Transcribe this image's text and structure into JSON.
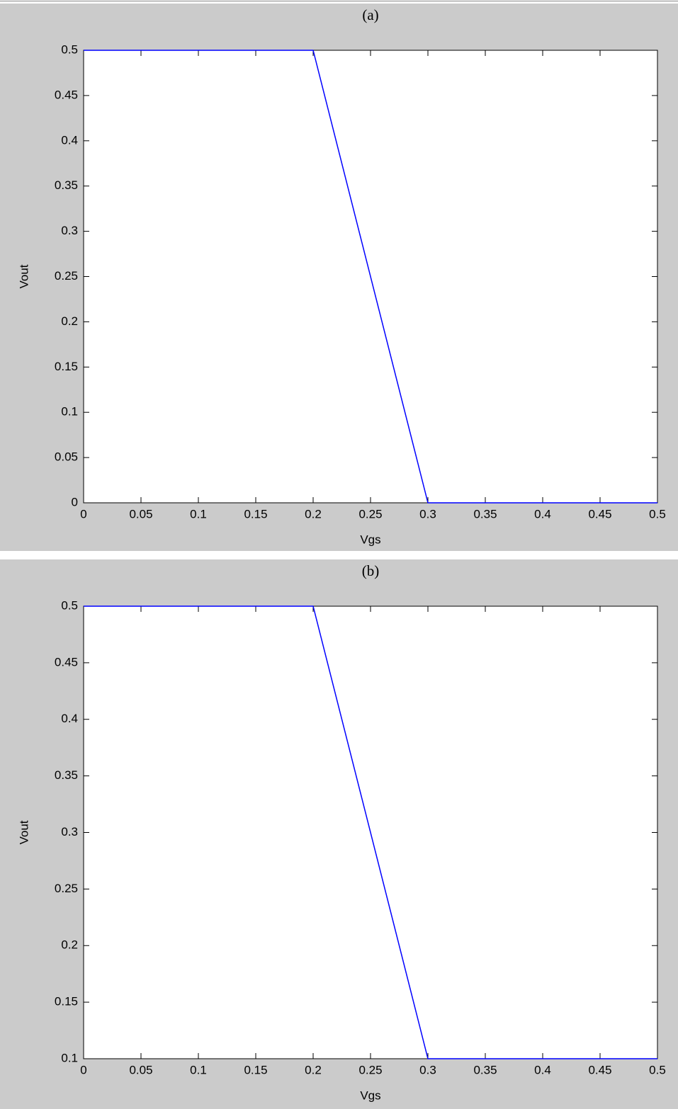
{
  "chart_data": [
    {
      "type": "line",
      "title": "(a)",
      "x_label": "Vgs",
      "y_label": "Vout",
      "x": [
        0,
        0.2,
        0.3,
        0.5
      ],
      "values": [
        0.5,
        0.5,
        0,
        0
      ],
      "color": "#0000ff",
      "xlim": [
        0,
        0.5
      ],
      "ylim": [
        0,
        0.5
      ],
      "xticks": [
        0,
        0.05,
        0.1,
        0.15,
        0.2,
        0.25,
        0.3,
        0.35,
        0.4,
        0.45,
        0.5
      ],
      "yticks": [
        0,
        0.05,
        0.1,
        0.15,
        0.2,
        0.25,
        0.3,
        0.35,
        0.4,
        0.45,
        0.5
      ]
    },
    {
      "type": "line",
      "title": "(b)",
      "x_label": "Vgs",
      "y_label": "Vout",
      "x": [
        0,
        0.2,
        0.3,
        0.5
      ],
      "values": [
        0.5,
        0.5,
        0.1,
        0.1
      ],
      "color": "#0000ff",
      "xlim": [
        0,
        0.5
      ],
      "ylim": [
        0.1,
        0.5
      ],
      "xticks": [
        0,
        0.05,
        0.1,
        0.15,
        0.2,
        0.25,
        0.3,
        0.35,
        0.4,
        0.45,
        0.5
      ],
      "yticks": [
        0.1,
        0.15,
        0.2,
        0.25,
        0.3,
        0.35,
        0.4,
        0.45,
        0.5
      ]
    }
  ]
}
